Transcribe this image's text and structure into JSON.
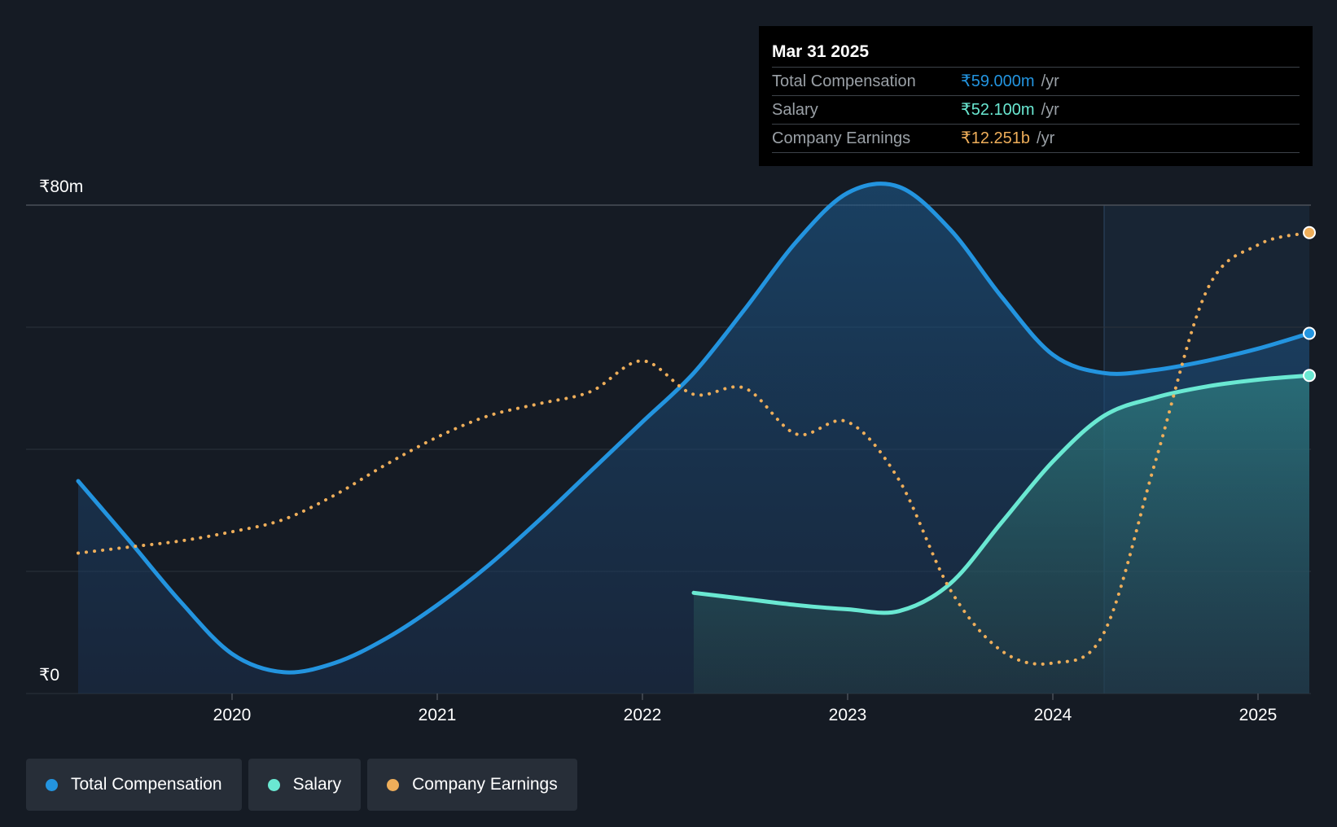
{
  "tooltip": {
    "date": "Mar 31 2025",
    "rows": [
      {
        "label": "Total Compensation",
        "value": "₹59.000m",
        "unit": "/yr",
        "color": "#2394df"
      },
      {
        "label": "Salary",
        "value": "₹52.100m",
        "unit": "/yr",
        "color": "#6ae8d2"
      },
      {
        "label": "Company Earnings",
        "value": "₹12.251b",
        "unit": "/yr",
        "color": "#eeae5a"
      }
    ]
  },
  "legend": [
    {
      "label": "Total Compensation",
      "color": "#2394df"
    },
    {
      "label": "Salary",
      "color": "#6ae8d2"
    },
    {
      "label": "Company Earnings",
      "color": "#eeae5a"
    }
  ],
  "chart_data": {
    "type": "area",
    "y_axis": {
      "min": 0,
      "max": 80,
      "top_label": "₹80m",
      "bottom_label": "₹0"
    },
    "x_axis": {
      "min": 2019.25,
      "max": 2025.25,
      "ticks": [
        "2020",
        "2021",
        "2022",
        "2023",
        "2024",
        "2025"
      ]
    },
    "forecast_start": 2024.25,
    "series": [
      {
        "name": "Total Compensation",
        "key": "total",
        "color": "#2394df",
        "style": "solid",
        "fill": true,
        "points": [
          [
            2019.25,
            34.8
          ],
          [
            2019.5,
            25
          ],
          [
            2019.75,
            15
          ],
          [
            2020.0,
            6.5
          ],
          [
            2020.25,
            3.5
          ],
          [
            2020.5,
            5
          ],
          [
            2020.75,
            9
          ],
          [
            2021.0,
            14.5
          ],
          [
            2021.25,
            21
          ],
          [
            2021.5,
            28.5
          ],
          [
            2021.75,
            36.5
          ],
          [
            2022.0,
            44.5
          ],
          [
            2022.25,
            52.5
          ],
          [
            2022.5,
            63
          ],
          [
            2022.75,
            74
          ],
          [
            2023.0,
            82
          ],
          [
            2023.25,
            83
          ],
          [
            2023.5,
            76
          ],
          [
            2023.75,
            65
          ],
          [
            2024.0,
            55.5
          ],
          [
            2024.25,
            52.5
          ],
          [
            2024.5,
            53
          ],
          [
            2024.75,
            54.5
          ],
          [
            2025.0,
            56.5
          ],
          [
            2025.25,
            59.0
          ]
        ]
      },
      {
        "name": "Salary",
        "key": "salary",
        "color": "#6ae8d2",
        "style": "solid",
        "fill": true,
        "points": [
          [
            2022.25,
            16.5
          ],
          [
            2022.5,
            15.5
          ],
          [
            2022.75,
            14.5
          ],
          [
            2023.0,
            13.8
          ],
          [
            2023.25,
            13.5
          ],
          [
            2023.5,
            18
          ],
          [
            2023.75,
            28
          ],
          [
            2024.0,
            38
          ],
          [
            2024.25,
            45.5
          ],
          [
            2024.5,
            48.5
          ],
          [
            2024.75,
            50.3
          ],
          [
            2025.0,
            51.4
          ],
          [
            2025.25,
            52.1
          ]
        ]
      },
      {
        "name": "Company Earnings",
        "key": "earnings",
        "color": "#eeae5a",
        "style": "dotted",
        "fill": false,
        "points": [
          [
            2019.25,
            23
          ],
          [
            2019.5,
            24
          ],
          [
            2019.75,
            25
          ],
          [
            2020.0,
            26.5
          ],
          [
            2020.25,
            28.5
          ],
          [
            2020.5,
            32.5
          ],
          [
            2020.75,
            37.5
          ],
          [
            2021.0,
            42
          ],
          [
            2021.25,
            45.5
          ],
          [
            2021.5,
            47.5
          ],
          [
            2021.75,
            49.5
          ],
          [
            2022.0,
            54.5
          ],
          [
            2022.25,
            49
          ],
          [
            2022.5,
            50
          ],
          [
            2022.75,
            42.5
          ],
          [
            2023.0,
            44.5
          ],
          [
            2023.25,
            35
          ],
          [
            2023.5,
            17
          ],
          [
            2023.75,
            7
          ],
          [
            2024.0,
            5
          ],
          [
            2024.25,
            10
          ],
          [
            2024.5,
            38
          ],
          [
            2024.75,
            66
          ],
          [
            2025.0,
            73.5
          ],
          [
            2025.25,
            75.5
          ]
        ]
      }
    ]
  }
}
